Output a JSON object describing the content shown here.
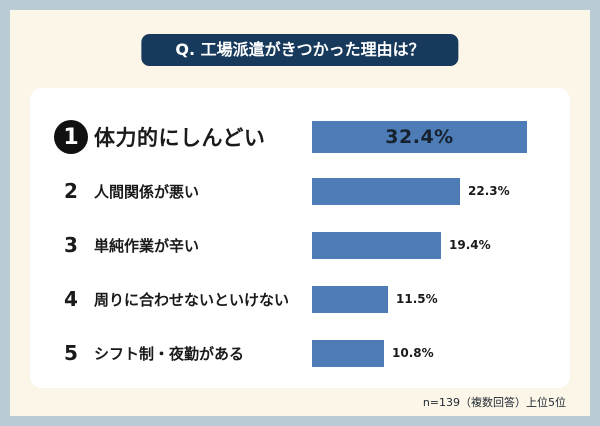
{
  "frame": {
    "border_color": "#b9ccd5",
    "background_color": "#fbf6e8",
    "card_color": "#ffffff"
  },
  "title": {
    "text": "Q. 工場派遣がきつかった理由は？",
    "background": "#17395c",
    "text_color": "#ffffff"
  },
  "chart_data": {
    "type": "bar",
    "orientation": "horizontal",
    "title": "Q. 工場派遣がきつかった理由は？",
    "unit": "%",
    "bar_color": "#4d7cb7",
    "xlim": [
      0,
      35
    ],
    "grid": false,
    "legend": false,
    "categories": [
      "体力的にしんどい",
      "人間関係が悪い",
      "単純作業が辛い",
      "周りに合わせないといけない",
      "シフト制・夜勤がある"
    ],
    "values": [
      32.4,
      22.3,
      19.4,
      11.5,
      10.8
    ],
    "items": [
      {
        "rank": "1",
        "label": "体力的にしんどい",
        "value": 32.4,
        "percent_label": "32.4%"
      },
      {
        "rank": "2",
        "label": "人間関係が悪い",
        "value": 22.3,
        "percent_label": "22.3%"
      },
      {
        "rank": "3",
        "label": "単純作業が辛い",
        "value": 19.4,
        "percent_label": "19.4%"
      },
      {
        "rank": "4",
        "label": "周りに合わせないといけない",
        "value": 11.5,
        "percent_label": "11.5%"
      },
      {
        "rank": "5",
        "label": "シフト制・夜勤がある",
        "value": 10.8,
        "percent_label": "10.8%"
      }
    ]
  },
  "footer": {
    "note": "n=139（複数回答）上位5位"
  }
}
